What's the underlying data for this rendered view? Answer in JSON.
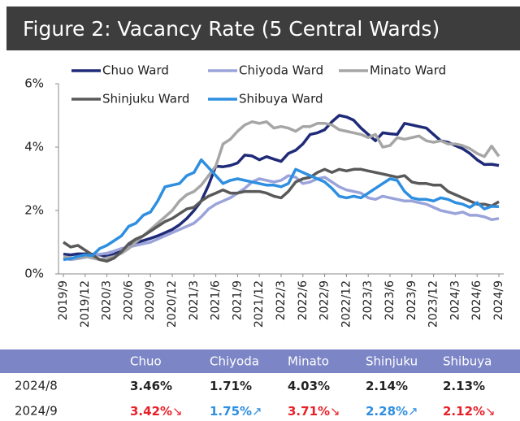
{
  "chart_data": {
    "type": "line",
    "title": "Figure 2: Vacancy Rate (5 Central Wards)",
    "categories": [
      "2019/9",
      null,
      null,
      "2019/12",
      null,
      null,
      "2020/3",
      null,
      null,
      "2020/6",
      null,
      null,
      "2020/9",
      null,
      null,
      "2020/12",
      null,
      null,
      "2021/3",
      null,
      null,
      "2021/6",
      null,
      null,
      "2021/9",
      null,
      null,
      "2021/12",
      null,
      null,
      "2022/3",
      null,
      null,
      "2022/6",
      null,
      null,
      "2022/9",
      null,
      null,
      "2022/12",
      null,
      null,
      "2023/3",
      null,
      null,
      "2023/6",
      null,
      null,
      "2023/9",
      null,
      null,
      "2023/12",
      null,
      null,
      "2024/3",
      null,
      null,
      "2024/6",
      null,
      null,
      "2024/9"
    ],
    "series": [
      {
        "name": "Chuo Ward",
        "color": "#1f2a78",
        "values": [
          0.62,
          0.6,
          0.63,
          0.63,
          0.62,
          0.6,
          0.55,
          0.62,
          0.75,
          0.9,
          0.98,
          1.05,
          1.12,
          1.2,
          1.3,
          1.4,
          1.55,
          1.75,
          2.0,
          2.3,
          2.8,
          3.4,
          3.38,
          3.42,
          3.5,
          3.75,
          3.72,
          3.6,
          3.7,
          3.62,
          3.55,
          3.8,
          3.9,
          4.1,
          4.4,
          4.45,
          4.55,
          4.8,
          5.0,
          4.95,
          4.85,
          4.6,
          4.4,
          4.2,
          4.45,
          4.42,
          4.4,
          4.75,
          4.7,
          4.65,
          4.6,
          4.4,
          4.2,
          4.15,
          4.05,
          3.95,
          3.8,
          3.6,
          3.45,
          3.46,
          3.42
        ]
      },
      {
        "name": "Chiyoda Ward",
        "color": "#9aa3da",
        "values": [
          0.5,
          0.45,
          0.48,
          0.52,
          0.58,
          0.62,
          0.65,
          0.72,
          0.8,
          0.85,
          0.9,
          0.95,
          1.0,
          1.1,
          1.2,
          1.3,
          1.4,
          1.5,
          1.6,
          1.8,
          2.05,
          2.2,
          2.3,
          2.4,
          2.55,
          2.7,
          2.9,
          3.0,
          2.95,
          2.9,
          2.95,
          3.1,
          3.05,
          2.85,
          2.9,
          3.0,
          3.05,
          2.9,
          2.75,
          2.65,
          2.6,
          2.55,
          2.4,
          2.35,
          2.45,
          2.4,
          2.35,
          2.3,
          2.3,
          2.25,
          2.2,
          2.1,
          2.0,
          1.95,
          1.9,
          1.95,
          1.85,
          1.85,
          1.8,
          1.71,
          1.75
        ]
      },
      {
        "name": "Minato Ward",
        "color": "#a6a6a6",
        "values": [
          0.55,
          0.5,
          0.5,
          0.55,
          0.5,
          0.45,
          0.5,
          0.55,
          0.65,
          0.8,
          1.0,
          1.2,
          1.4,
          1.6,
          1.8,
          2.0,
          2.3,
          2.5,
          2.6,
          2.8,
          3.1,
          3.4,
          4.1,
          4.25,
          4.5,
          4.7,
          4.8,
          4.75,
          4.8,
          4.6,
          4.65,
          4.6,
          4.5,
          4.65,
          4.65,
          4.75,
          4.75,
          4.7,
          4.55,
          4.5,
          4.45,
          4.4,
          4.3,
          4.4,
          4.0,
          4.05,
          4.3,
          4.25,
          4.3,
          4.35,
          4.2,
          4.15,
          4.2,
          4.1,
          4.1,
          4.05,
          3.95,
          3.8,
          3.7,
          4.03,
          3.71
        ]
      },
      {
        "name": "Shinjuku Ward",
        "color": "#595959",
        "values": [
          1.0,
          0.85,
          0.9,
          0.75,
          0.6,
          0.45,
          0.4,
          0.5,
          0.7,
          0.95,
          1.1,
          1.2,
          1.35,
          1.5,
          1.65,
          1.75,
          1.9,
          2.05,
          2.1,
          2.3,
          2.45,
          2.55,
          2.65,
          2.55,
          2.55,
          2.6,
          2.6,
          2.6,
          2.55,
          2.45,
          2.4,
          2.6,
          2.9,
          3.0,
          3.05,
          3.2,
          3.3,
          3.2,
          3.3,
          3.25,
          3.3,
          3.3,
          3.25,
          3.2,
          3.15,
          3.1,
          3.05,
          3.1,
          2.9,
          2.85,
          2.85,
          2.8,
          2.8,
          2.6,
          2.5,
          2.4,
          2.3,
          2.2,
          2.2,
          2.14,
          2.28
        ]
      },
      {
        "name": "Shibuya Ward",
        "color": "#2e8fe0",
        "values": [
          0.45,
          0.48,
          0.55,
          0.6,
          0.58,
          0.8,
          0.9,
          1.05,
          1.2,
          1.5,
          1.6,
          1.85,
          1.95,
          2.3,
          2.75,
          2.8,
          2.85,
          3.1,
          3.2,
          3.6,
          3.35,
          3.1,
          2.85,
          2.95,
          3.0,
          2.95,
          2.9,
          2.85,
          2.8,
          2.8,
          2.75,
          2.85,
          3.3,
          3.2,
          3.1,
          3.0,
          2.9,
          2.7,
          2.45,
          2.4,
          2.45,
          2.4,
          2.55,
          2.7,
          2.85,
          3.0,
          2.95,
          2.6,
          2.4,
          2.35,
          2.35,
          2.3,
          2.4,
          2.35,
          2.25,
          2.2,
          2.1,
          2.25,
          2.05,
          2.13,
          2.12
        ]
      }
    ],
    "ylim": [
      0,
      6
    ],
    "yticks": [
      {
        "value": 0,
        "label": "0%"
      },
      {
        "value": 2,
        "label": "2%"
      },
      {
        "value": 4,
        "label": "4%"
      },
      {
        "value": 6,
        "label": "6%"
      }
    ],
    "grid": false
  },
  "table": {
    "header": [
      "Chuo",
      "Chiyoda",
      "Minato",
      "Shinjuku",
      "Shibuya"
    ],
    "rows": [
      {
        "label": "2024/8",
        "cells": [
          {
            "text": "3.46%"
          },
          {
            "text": "1.71%"
          },
          {
            "text": "4.03%"
          },
          {
            "text": "2.14%"
          },
          {
            "text": "2.13%"
          }
        ]
      },
      {
        "label": "2024/9",
        "cells": [
          {
            "text": "3.42%",
            "arrow": "↘",
            "color": "#e8202a"
          },
          {
            "text": "1.75%",
            "arrow": "↗",
            "color": "#2e8fe0"
          },
          {
            "text": "3.71%",
            "arrow": "↘",
            "color": "#e8202a"
          },
          {
            "text": "2.28%",
            "arrow": "↗",
            "color": "#2e8fe0"
          },
          {
            "text": "2.12%",
            "arrow": "↘",
            "color": "#e8202a"
          }
        ]
      }
    ]
  }
}
